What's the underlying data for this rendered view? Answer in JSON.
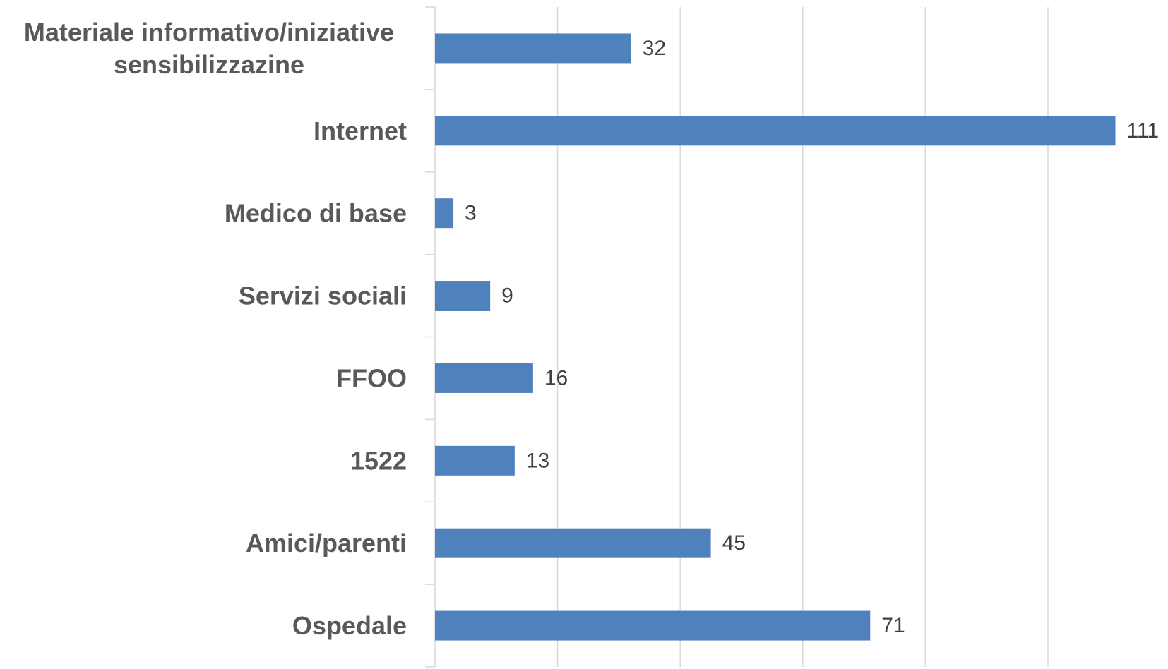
{
  "chart_data": {
    "type": "bar",
    "orientation": "horizontal",
    "categories": [
      [
        "Materiale informativo/iniziative",
        "sensibilizzazine"
      ],
      [
        "Internet"
      ],
      [
        "Medico di base"
      ],
      [
        "Servizi sociali"
      ],
      [
        "FFOO"
      ],
      [
        "1522"
      ],
      [
        "Amici/parenti"
      ],
      [
        "Ospedale"
      ]
    ],
    "values": [
      32,
      111,
      3,
      9,
      16,
      13,
      45,
      71
    ],
    "xlim": [
      0,
      120
    ],
    "grid": true,
    "legend": "none",
    "colors": {
      "bar": "#4F81BD",
      "grid": "#D9D9D9",
      "axis": "#D9D9D9"
    }
  }
}
